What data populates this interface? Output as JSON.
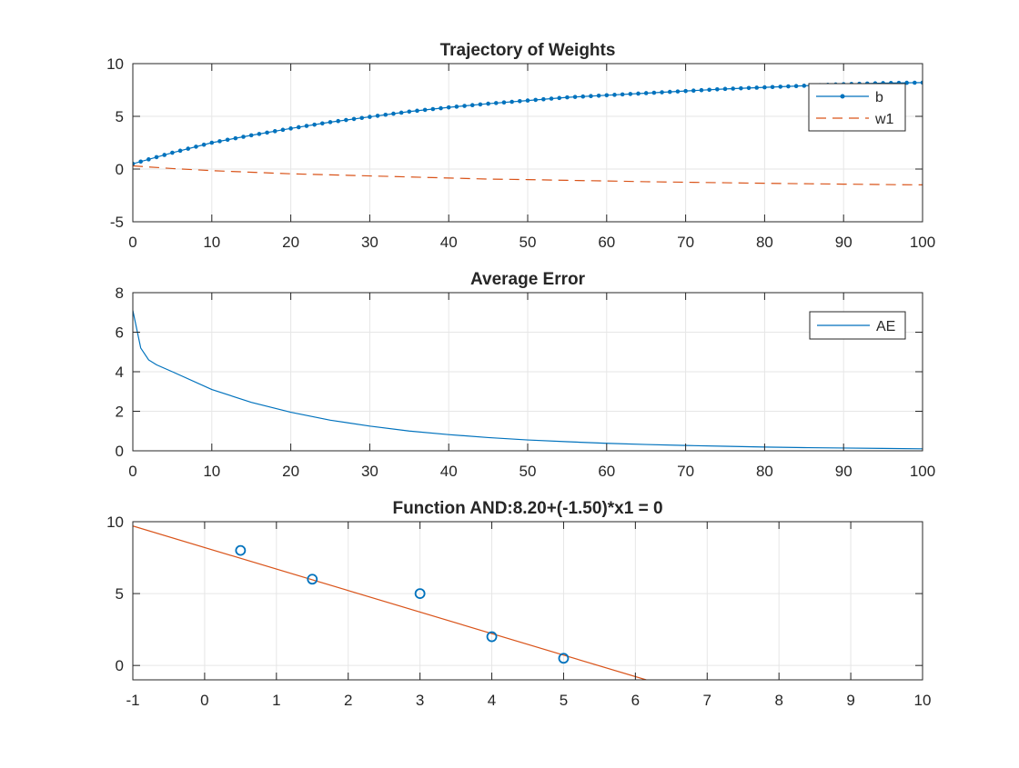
{
  "colors": {
    "series_blue": "#0072bd",
    "series_orange": "#d95319",
    "grid": "#e6e6e6",
    "axis": "#262626",
    "background": "#ffffff"
  },
  "chart_data": [
    {
      "type": "line",
      "title": "Trajectory of Weights",
      "xlabel": "",
      "ylabel": "",
      "xlim": [
        0,
        100
      ],
      "ylim": [
        -5,
        10
      ],
      "xticks": [
        0,
        10,
        20,
        30,
        40,
        50,
        60,
        70,
        80,
        90,
        100
      ],
      "yticks": [
        -5,
        0,
        5,
        10
      ],
      "xtick_labels": [
        "0",
        "10",
        "20",
        "30",
        "40",
        "50",
        "60",
        "70",
        "80",
        "90",
        "100"
      ],
      "ytick_labels": [
        "-5",
        "0",
        "5",
        "10"
      ],
      "grid": true,
      "legend_position": "top-right",
      "x": [
        0,
        5,
        10,
        15,
        20,
        25,
        30,
        35,
        40,
        45,
        50,
        55,
        60,
        65,
        70,
        75,
        80,
        85,
        90,
        95,
        100
      ],
      "series": [
        {
          "name": "b",
          "style": "solid-dot",
          "color": "#0072bd",
          "values": [
            0.5,
            1.55,
            2.5,
            3.2,
            3.85,
            4.45,
            4.95,
            5.45,
            5.85,
            6.2,
            6.5,
            6.8,
            7.0,
            7.2,
            7.4,
            7.6,
            7.75,
            7.9,
            8.05,
            8.15,
            8.2
          ]
        },
        {
          "name": "w1",
          "style": "dashed",
          "color": "#d95319",
          "values": [
            0.3,
            0.05,
            -0.15,
            -0.3,
            -0.45,
            -0.55,
            -0.65,
            -0.75,
            -0.85,
            -0.95,
            -1.0,
            -1.07,
            -1.13,
            -1.2,
            -1.25,
            -1.3,
            -1.35,
            -1.39,
            -1.43,
            -1.47,
            -1.5
          ]
        }
      ]
    },
    {
      "type": "line",
      "title": "Average Error",
      "xlabel": "",
      "ylabel": "",
      "xlim": [
        0,
        100
      ],
      "ylim": [
        0,
        8
      ],
      "xticks": [
        0,
        10,
        20,
        30,
        40,
        50,
        60,
        70,
        80,
        90,
        100
      ],
      "yticks": [
        0,
        2,
        4,
        6,
        8
      ],
      "xtick_labels": [
        "0",
        "10",
        "20",
        "30",
        "40",
        "50",
        "60",
        "70",
        "80",
        "90",
        "100"
      ],
      "ytick_labels": [
        "0",
        "2",
        "4",
        "6",
        "8"
      ],
      "grid": true,
      "legend_position": "top-right",
      "x": [
        0,
        1,
        2,
        3,
        5,
        10,
        15,
        20,
        25,
        30,
        35,
        40,
        45,
        50,
        55,
        60,
        65,
        70,
        75,
        80,
        85,
        90,
        95,
        100
      ],
      "series": [
        {
          "name": "AE",
          "style": "solid",
          "color": "#0072bd",
          "values": [
            7.1,
            5.2,
            4.6,
            4.35,
            4.0,
            3.1,
            2.45,
            1.95,
            1.55,
            1.25,
            1.0,
            0.82,
            0.67,
            0.55,
            0.46,
            0.38,
            0.32,
            0.27,
            0.23,
            0.19,
            0.16,
            0.14,
            0.12,
            0.1
          ]
        }
      ]
    },
    {
      "type": "scatter",
      "title": "Function AND:8.20+(-1.50)*x1 = 0",
      "xlabel": "",
      "ylabel": "",
      "xlim": [
        -1,
        10
      ],
      "ylim": [
        -1,
        10
      ],
      "xticks": [
        -1,
        0,
        1,
        2,
        3,
        4,
        5,
        6,
        7,
        8,
        9,
        10
      ],
      "yticks": [
        0,
        5,
        10
      ],
      "xtick_labels": [
        "-1",
        "0",
        "1",
        "2",
        "3",
        "4",
        "5",
        "6",
        "7",
        "8",
        "9",
        "10"
      ],
      "ytick_labels": [
        "0",
        "5",
        "10"
      ],
      "grid": true,
      "points": {
        "color": "#0072bd",
        "x": [
          0.5,
          1.5,
          3,
          4,
          5
        ],
        "y": [
          8,
          6,
          5,
          2,
          0.5
        ]
      },
      "line": {
        "color": "#d95319",
        "x": [
          -1,
          6.15
        ],
        "y": [
          9.7,
          -1
        ]
      }
    }
  ]
}
